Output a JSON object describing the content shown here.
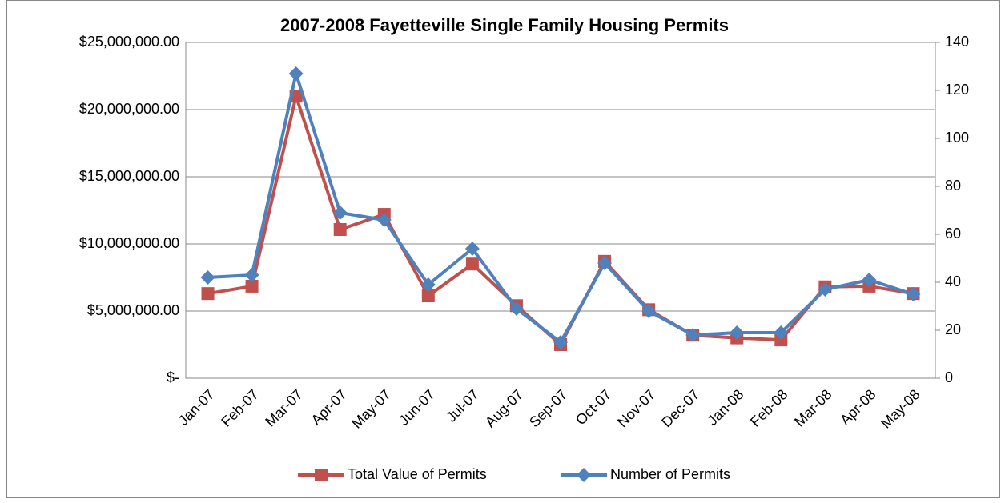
{
  "chart_data": {
    "type": "line",
    "title": "2007-2008 Fayetteville Single Family Housing Permits",
    "categories": [
      "Jan-07",
      "Feb-07",
      "Mar-07",
      "Apr-07",
      "May-07",
      "Jun-07",
      "Jul-07",
      "Aug-07",
      "Sep-07",
      "Oct-07",
      "Nov-07",
      "Dec-07",
      "Jan-08",
      "Feb-08",
      "Mar-08",
      "Apr-08",
      "May-08"
    ],
    "series": [
      {
        "name": "Total Value of Permits",
        "color": "#c0504d",
        "marker": "square",
        "axis": "y",
        "values": [
          6300000,
          6850000,
          21000000,
          11070000,
          12200000,
          6130000,
          8500000,
          5400000,
          2500000,
          8700000,
          5100000,
          3200000,
          3000000,
          2850000,
          6800000,
          6850000,
          6300000
        ]
      },
      {
        "name": "Number of Permits",
        "color": "#4f81bd",
        "marker": "diamond",
        "axis": "y2",
        "values": [
          42,
          43,
          127,
          69,
          66,
          39,
          54,
          29,
          15,
          48,
          28,
          18,
          19,
          19,
          37,
          41,
          35
        ]
      }
    ],
    "ylim": [
      0,
      25000000
    ],
    "yticks": [
      {
        "value": 0,
        "label": "$-"
      },
      {
        "value": 5000000,
        "label": "$5,000,000.00"
      },
      {
        "value": 10000000,
        "label": "$10,000,000.00"
      },
      {
        "value": 15000000,
        "label": "$15,000,000.00"
      },
      {
        "value": 20000000,
        "label": "$20,000,000.00"
      },
      {
        "value": 25000000,
        "label": "$25,000,000.00"
      }
    ],
    "y2lim": [
      0,
      140
    ],
    "y2ticks": [
      0,
      20,
      40,
      60,
      80,
      100,
      120,
      140
    ],
    "grid": true,
    "legend": "bottom"
  }
}
